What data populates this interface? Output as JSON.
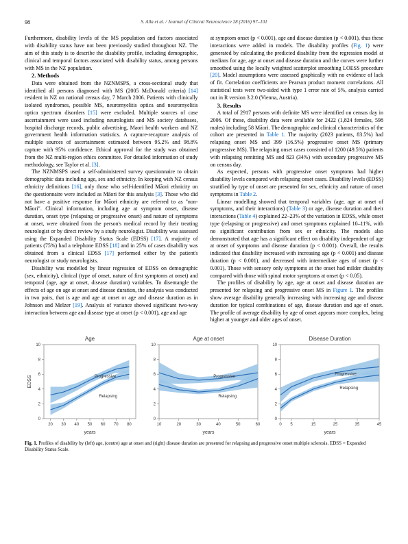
{
  "page_number": "98",
  "running_head": "S. Alla et al. / Journal of Clinical Neuroscience 28 (2016) 97–101",
  "body": {
    "intro_tail": "Furthermore, disability levels of the MS population and factors associated with disability status have not been previously studied throughout NZ. The aim of this study is to describe the disability profile, including demographic, clinical and temporal factors associated with disability status, among persons with MS in the NZ population.",
    "methods_head": "2. Methods",
    "methods_p1": "Data were obtained from the NZNMSPS, a cross-sectional study that identified all persons diagnosed with MS (2005 McDonald criteria) [14] resident in NZ on national census day, 7 March 2006. Patients with clinically isolated syndromes, possible MS, neuromyelitis optica and neuromyelitis optica spectrum disorders [15] were excluded. Multiple sources of case ascertainment were used including neurologists and MS society databases, hospital discharge records, public advertising, Maori health workers and NZ government health information statistics. A capture-recapture analysis of multiple sources of ascertainment estimated between 95.2% and 98.8% capture with 95% confidence. Ethical approval for the study was obtained from the NZ multi-region ethics committee. For detailed information of study methodology, see Taylor et al. [3].",
    "methods_p2": "The NZNMSPS used a self-administered survey questionnaire to obtain demographic data including age, sex and ethnicity. In keeping with NZ census ethnicity definitions [16], only those who self-identified Māori ethnicity on the questionnaire were included as Māori for this analysis [3]. Those who did not have a positive response for Māori ethnicity are referred to as \"non-Māori\". Clinical information, including age at symptom onset, disease duration, onset type (relapsing or progressive onset) and nature of symptoms at onset, were obtained from the person's medical record by their treating neurologist or by direct review by a study neurologist. Disability was assessed using the Expanded Disability Status Scale (EDSS) [17]. A majority of patients (75%) had a telephone EDSS [18] and in 25% of cases disability was obtained from a clinical EDSS [17] performed either by the patient's neurologist or study neurologists.",
    "methods_p3": "Disability was modelled by linear regression of EDSS on demographic (sex, ethnicity), clinical (type of onset, nature of first symptoms at onset) and temporal (age, age at onset, disease duration) variables. To disentangle the effects of age on age at onset and disease duration, the analysis was conducted in two pairs, that is age and age at onset or age and disease duration as in Johnson and Melzer [19]. Analysis of variance showed significant two-way interaction between age and disease type at onset (p < 0.001), age and age",
    "results_intro": "at symptom onset (p < 0.001), age and disease duration (p < 0.001), thus these interactions were added in models. The disability profiles (Fig. 1) were generated by calculating the predicted disability from the regression model at medians for age, age at onset and disease duration and the curves were further smoothed using the locally weighted scatterplot smoothing LOESS procedure [20]. Model assumptions were assessed graphically with no evidence of lack of fit. Correlation coefficients are Pearson product moment correlations. All statistical tests were two-sided with type 1 error rate of 5%, analysis carried out in R version 3.2.0 (Vienna, Austria).",
    "results_head": "3. Results",
    "results_p1": "A total of 2917 persons with definite MS were identified on census day in 2006. Of these, disability data were available for 2422 (1,824 females, 598 males) including 58 Māori. The demographic and clinical characteristics of the cohort are presented in Table 1. The majority (2023 patients, 83.5%) had relapsing onset MS and 399 (16.5%) progressive onset MS (primary progressive MS). The relapsing onset cases consisted of 1200 (49.5%) patients with relapsing remitting MS and 823 (34%) with secondary progressive MS on census day.",
    "results_p2": "As expected, persons with progressive onset symptoms had higher disability levels compared with relapsing onset cases. Disability levels (EDSS) stratified by type of onset are presented for sex, ethnicity and nature of onset symptoms in Table 2.",
    "results_p3": "Linear modelling showed that temporal variables (age, age at onset of symptoms, and their interactions) (Table 3) or age, disease duration and their interactions (Table 4) explained 22–23% of the variation in EDSS, while onset type (relapsing or progressive) and onset symptoms explained 10–11%, with no significant contribution from sex or ethnicity. The models also demonstrated that age has a significant effect on disability independent of age at onset of symptoms and disease duration (p < 0.001). Overall, the results indicated that disability increased with increasing age (p < 0.001) and disease duration (p < 0.001), and decreased with intermediate ages of onset (p < 0.001). Those with sensory only symptoms at the onset had milder disability compared with those with spinal motor symptoms at onset (p < 0.05).",
    "results_p4": "The profiles of disability by age, age at onset and disease duration are presented for relapsing and progressive onset MS in Figure 1. The profiles show average disability generally increasing with increasing age and disease duration for typical combinations of age, disease duration and age of onset. The profile of average disability by age of onset appears more complex, being higher at younger and older ages of onset."
  },
  "figure": {
    "caption_label": "Fig. 1.",
    "caption_text": "Profiles of disability by (left) age, (centre) age at onset and (right) disease duration are presented for relapsing and progressive onset multiple sclerosis. EDSS = Expanded Disability Status Scale.",
    "ylabel": "EDSS",
    "xlabel": "years",
    "panels": [
      {
        "title": "Age",
        "xlim": [
          15,
          85
        ],
        "ylim": [
          0,
          10
        ],
        "xticks": [
          20,
          30,
          40,
          50,
          60,
          70,
          80
        ],
        "yticks": [
          0,
          2,
          4,
          6,
          8,
          10
        ],
        "series": {
          "progressive": {
            "label": "Progressive",
            "color": "#2b6fb8",
            "lw": 1.2,
            "x": [
              20,
              30,
              40,
              50,
              60,
              70,
              80
            ],
            "y": [
              3.2,
              3.6,
              4.3,
              5.2,
              6.0,
              6.7,
              7.0
            ]
          },
          "relapsing": {
            "label": "Relapsing",
            "color": "#2b6fb8",
            "lw": 1.2,
            "x": [
              20,
              30,
              40,
              50,
              60,
              70,
              80
            ],
            "y": [
              1.2,
              1.8,
              2.8,
              3.8,
              4.8,
              5.6,
              6.0
            ]
          },
          "prog_ci": {
            "color": "#9cc6e8",
            "opacity": 0.9,
            "x": [
              20,
              30,
              40,
              50,
              60,
              70,
              80
            ],
            "hi": [
              4.3,
              4.3,
              4.8,
              5.6,
              6.4,
              7.2,
              7.9
            ],
            "lo": [
              2.1,
              2.9,
              3.8,
              4.8,
              5.6,
              6.2,
              6.1
            ]
          },
          "rel_ci": {
            "color": "#9cc6e8",
            "opacity": 0.9,
            "x": [
              20,
              30,
              40,
              50,
              60,
              70,
              80
            ],
            "hi": [
              1.9,
              2.2,
              3.1,
              4.1,
              5.1,
              6.0,
              6.7
            ],
            "lo": [
              0.5,
              1.4,
              2.5,
              3.5,
              4.5,
              5.2,
              5.3
            ]
          }
        }
      },
      {
        "title": "Age at onset",
        "xlim": [
          10,
          60
        ],
        "ylim": [
          0,
          10
        ],
        "xticks": [
          10,
          20,
          30,
          40,
          50,
          60
        ],
        "yticks": [
          0,
          2,
          4,
          6,
          8,
          10
        ],
        "series": {
          "progressive": {
            "label": "Progressive",
            "color": "#2b6fb8",
            "lw": 1.2,
            "x": [
              10,
              20,
              30,
              40,
              50,
              60
            ],
            "y": [
              6.2,
              5.4,
              5.2,
              5.4,
              5.8,
              6.2
            ]
          },
          "relapsing": {
            "label": "Relapsing",
            "color": "#2b6fb8",
            "lw": 1.2,
            "x": [
              10,
              20,
              30,
              40,
              50,
              60
            ],
            "y": [
              4.6,
              3.9,
              3.6,
              3.8,
              4.4,
              5.4
            ]
          },
          "prog_ci": {
            "color": "#9cc6e8",
            "opacity": 0.9,
            "x": [
              10,
              20,
              30,
              40,
              50,
              60
            ],
            "hi": [
              7.6,
              6.1,
              5.6,
              5.8,
              6.4,
              7.4
            ],
            "lo": [
              4.8,
              4.7,
              4.8,
              5.0,
              5.2,
              5.0
            ]
          },
          "rel_ci": {
            "color": "#9cc6e8",
            "opacity": 0.9,
            "x": [
              10,
              20,
              30,
              40,
              50,
              60
            ],
            "hi": [
              5.4,
              4.3,
              3.9,
              4.1,
              4.9,
              6.6
            ],
            "lo": [
              3.8,
              3.5,
              3.3,
              3.5,
              3.9,
              4.2
            ]
          }
        }
      },
      {
        "title": "Disease Duration",
        "xlim": [
          0,
          45
        ],
        "ylim": [
          0,
          10
        ],
        "xticks": [
          0,
          5,
          15,
          25,
          35,
          45
        ],
        "yticks": [
          0,
          2,
          4,
          6,
          8,
          10
        ],
        "series": {
          "progressive": {
            "label": "Progressive",
            "color": "#2b6fb8",
            "lw": 1.2,
            "x": [
              0,
              5,
              15,
              25,
              35,
              45
            ],
            "y": [
              3.2,
              4.3,
              5.5,
              6.2,
              6.7,
              7.0
            ]
          },
          "relapsing": {
            "label": "Relapsing",
            "color": "#2b6fb8",
            "lw": 1.2,
            "x": [
              0,
              5,
              15,
              25,
              35,
              45
            ],
            "y": [
              1.4,
              2.6,
              4.0,
              4.9,
              5.5,
              5.9
            ]
          },
          "prog_ci": {
            "color": "#9cc6e8",
            "opacity": 0.9,
            "x": [
              0,
              5,
              15,
              25,
              35,
              45
            ],
            "hi": [
              4.2,
              4.9,
              6.0,
              6.7,
              7.4,
              8.2
            ],
            "lo": [
              2.2,
              3.7,
              5.0,
              5.7,
              6.0,
              5.8
            ]
          },
          "rel_ci": {
            "color": "#9cc6e8",
            "opacity": 0.9,
            "x": [
              0,
              5,
              15,
              25,
              35,
              45
            ],
            "hi": [
              1.9,
              2.9,
              4.3,
              5.2,
              6.0,
              6.8
            ],
            "lo": [
              0.9,
              2.3,
              3.7,
              4.6,
              5.0,
              5.0
            ]
          }
        }
      }
    ],
    "axis_color": "#666666",
    "tick_font_size": 6,
    "title_font_size": 8,
    "label_font_size": 7,
    "series_label_font_size": 6,
    "plot_bg": "#ffffff"
  }
}
